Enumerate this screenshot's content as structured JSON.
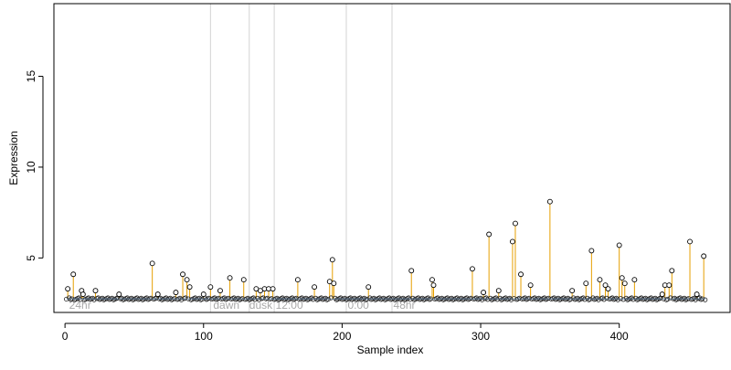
{
  "chart_data": {
    "type": "scatter",
    "style": "lollipop from baseline",
    "title": "",
    "xlabel": "Sample index",
    "ylabel": "Expression",
    "xlim": [
      -8,
      480
    ],
    "ylim": [
      2.0,
      19.0
    ],
    "xticks": [
      0,
      100,
      200,
      300,
      400
    ],
    "yticks": [
      5,
      10,
      15
    ],
    "baseline": 2.75,
    "grid": false,
    "colors": {
      "stem": "#E69F00",
      "point_stroke": "#000000",
      "baseline": "#6b8fb5",
      "divider": "#d3d3d3",
      "annotation": "#a9a9a9",
      "axis": "#000000"
    },
    "dividers": [
      105,
      133,
      151,
      203,
      236
    ],
    "annotations": [
      {
        "x": 3,
        "text": "24hr"
      },
      {
        "x": 107,
        "text": "dawn"
      },
      {
        "x": 133,
        "text": "dusk"
      },
      {
        "x": 152,
        "text": "12:00"
      },
      {
        "x": 204,
        "text": "0:00"
      },
      {
        "x": 237,
        "text": "48hr"
      }
    ],
    "peaks": [
      [
        2,
        3.3
      ],
      [
        6,
        4.1
      ],
      [
        12,
        3.2
      ],
      [
        13,
        3.0
      ],
      [
        22,
        3.2
      ],
      [
        39,
        3.0
      ],
      [
        63,
        4.7
      ],
      [
        67,
        3.0
      ],
      [
        80,
        3.1
      ],
      [
        85,
        4.1
      ],
      [
        88,
        3.8
      ],
      [
        90,
        3.4
      ],
      [
        100,
        3.0
      ],
      [
        105,
        3.4
      ],
      [
        112,
        3.2
      ],
      [
        119,
        3.9
      ],
      [
        129,
        3.8
      ],
      [
        138,
        3.3
      ],
      [
        141,
        3.2
      ],
      [
        144,
        3.3
      ],
      [
        147,
        3.3
      ],
      [
        150,
        3.3
      ],
      [
        168,
        3.8
      ],
      [
        180,
        3.4
      ],
      [
        191,
        3.7
      ],
      [
        193,
        4.9
      ],
      [
        194,
        3.6
      ],
      [
        219,
        3.4
      ],
      [
        250,
        4.3
      ],
      [
        265,
        3.8
      ],
      [
        266,
        3.5
      ],
      [
        294,
        4.4
      ],
      [
        302,
        3.1
      ],
      [
        306,
        6.3
      ],
      [
        313,
        3.2
      ],
      [
        323,
        5.9
      ],
      [
        325,
        6.9
      ],
      [
        329,
        4.1
      ],
      [
        336,
        3.5
      ],
      [
        350,
        8.1
      ],
      [
        366,
        3.2
      ],
      [
        376,
        3.6
      ],
      [
        380,
        5.4
      ],
      [
        386,
        3.8
      ],
      [
        390,
        3.5
      ],
      [
        392,
        3.3
      ],
      [
        400,
        5.7
      ],
      [
        402,
        3.9
      ],
      [
        404,
        3.6
      ],
      [
        411,
        3.8
      ],
      [
        431,
        3.0
      ],
      [
        433,
        3.5
      ],
      [
        436,
        3.5
      ],
      [
        438,
        4.3
      ],
      [
        451,
        5.9
      ],
      [
        456,
        3.0
      ],
      [
        461,
        5.1
      ]
    ],
    "n_samples": 462
  }
}
